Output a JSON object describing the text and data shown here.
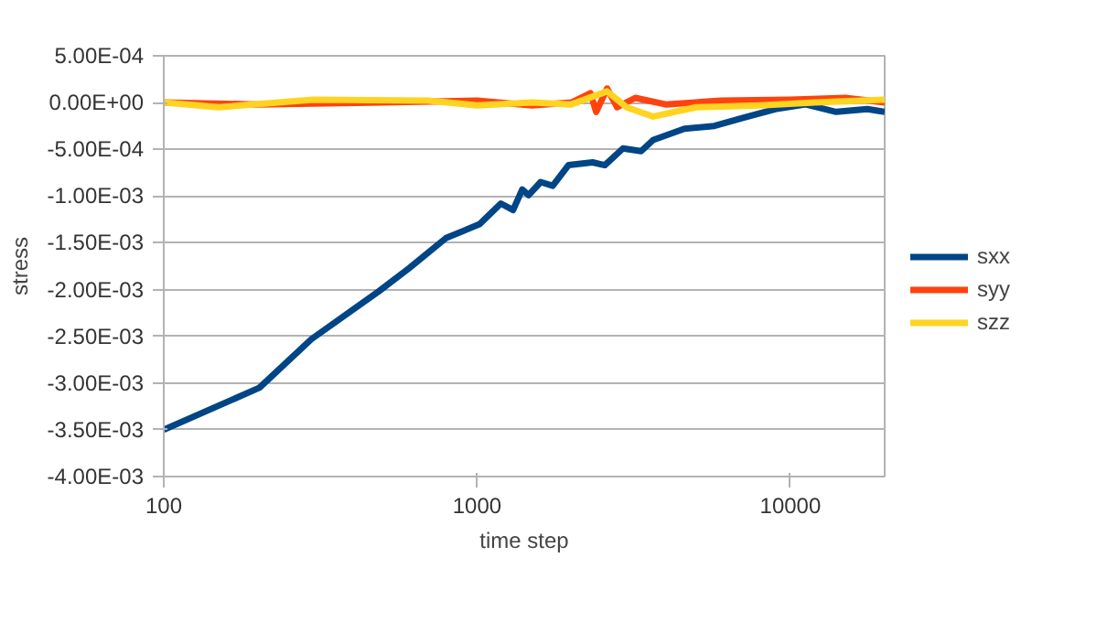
{
  "chart_data": {
    "type": "line",
    "xlabel": "time step",
    "ylabel": "stress",
    "log": "x",
    "grid": "y",
    "legend": "right",
    "line_style": "solid",
    "marker": "none",
    "xlim": [
      100,
      20000
    ],
    "xticks": [
      100,
      1000,
      10000
    ],
    "ylim": [
      -0.004,
      0.0005
    ],
    "yticks": [
      {
        "value": 0.0005,
        "label": "5.00E-04"
      },
      {
        "value": 0,
        "label": "0.00E+00"
      },
      {
        "value": -0.0005,
        "label": "-5.00E-04"
      },
      {
        "value": -0.001,
        "label": "-1.00E-03"
      },
      {
        "value": -0.0015,
        "label": "-1.50E-03"
      },
      {
        "value": -0.002,
        "label": "-2.00E-03"
      },
      {
        "value": -0.0025,
        "label": "-2.50E-03"
      },
      {
        "value": -0.003,
        "label": "-3.00E-03"
      },
      {
        "value": -0.0035,
        "label": "-3.50E-03"
      },
      {
        "value": -0.004,
        "label": "-4.00E-03"
      }
    ],
    "series": [
      {
        "name": "sxx",
        "color": "#004586",
        "x": [
          100,
          202,
          296,
          485,
          608,
          795,
          1019,
          1191,
          1303,
          1394,
          1460,
          1596,
          1744,
          1957,
          2338,
          2557,
          2922,
          3339,
          3650,
          4590,
          5720,
          7140,
          8950,
          11200,
          14000,
          17600,
          20000
        ],
        "values": [
          -0.0035,
          -0.00305,
          -0.00253,
          -0.00202,
          -0.00177,
          -0.00145,
          -0.0013,
          -0.00108,
          -0.00115,
          -0.00093,
          -0.00099,
          -0.00085,
          -0.00089,
          -0.00067,
          -0.00064,
          -0.00067,
          -0.00049,
          -0.00052,
          -0.0004,
          -0.00028,
          -0.00025,
          -0.00016,
          -7e-05,
          -2e-05,
          -0.0001,
          -7e-05,
          -0.0001
        ]
      },
      {
        "name": "syy",
        "color": "#ff420e",
        "x": [
          100,
          200,
          500,
          1000,
          1500,
          2000,
          2300,
          2400,
          2600,
          2800,
          3200,
          4000,
          6000,
          10000,
          15000,
          20000
        ],
        "values": [
          0,
          -2e-05,
          0,
          2e-05,
          -3e-05,
          0,
          0.0001,
          -0.0001,
          0.00015,
          -5e-05,
          5e-05,
          -2e-05,
          2e-05,
          3e-05,
          5e-05,
          0
        ]
      },
      {
        "name": "szz",
        "color": "#ffd320",
        "x": [
          100,
          150,
          300,
          700,
          1000,
          1500,
          2000,
          2600,
          3000,
          3650,
          5000,
          8000,
          12000,
          20000
        ],
        "values": [
          0,
          -5e-05,
          3e-05,
          2e-05,
          -3e-05,
          0,
          -2e-05,
          0.00012,
          -5e-05,
          -0.00015,
          -5e-05,
          -3e-05,
          0,
          3e-05
        ]
      }
    ]
  }
}
